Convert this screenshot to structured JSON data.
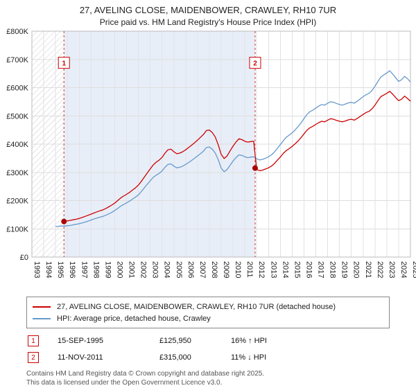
{
  "title": "27, AVELING CLOSE, MAIDENBOWER, CRAWLEY, RH10 7UR",
  "subtitle": "Price paid vs. HM Land Registry's House Price Index (HPI)",
  "chart_data": {
    "type": "line",
    "title": "27, AVELING CLOSE, MAIDENBOWER, CRAWLEY, RH10 7UR - Price paid vs HPI",
    "x_range": [
      1993,
      2025
    ],
    "y_range": [
      0,
      800000
    ],
    "grid": true,
    "legend_position": "bottom",
    "x_ticks": [
      1993,
      1994,
      1995,
      1996,
      1997,
      1998,
      1999,
      2000,
      2001,
      2002,
      2003,
      2004,
      2005,
      2006,
      2007,
      2008,
      2009,
      2010,
      2011,
      2012,
      2013,
      2014,
      2015,
      2016,
      2017,
      2018,
      2019,
      2020,
      2021,
      2022,
      2023,
      2024,
      2025
    ],
    "y_ticks": [
      {
        "v": 0,
        "label": "£0"
      },
      {
        "v": 100,
        "label": "£100K"
      },
      {
        "v": 200,
        "label": "£200K"
      },
      {
        "v": 300,
        "label": "£300K"
      },
      {
        "v": 400,
        "label": "£400K"
      },
      {
        "v": 500,
        "label": "£500K"
      },
      {
        "v": 600,
        "label": "£600K"
      },
      {
        "v": 700,
        "label": "£700K"
      },
      {
        "v": 800,
        "label": "£800K"
      }
    ],
    "hatch_end": 1995.71,
    "band": [
      1995.71,
      2011.87
    ],
    "band_color": "#e8eef8",
    "marker_label_y_k": 688,
    "markers": [
      {
        "num": "1",
        "x": 1995.71,
        "price_k": 125.95
      },
      {
        "num": "2",
        "x": 2011.87,
        "price_k": 315
      }
    ],
    "series": [
      {
        "name": "27, AVELING CLOSE, MAIDENBOWER, CRAWLEY, RH10 7UR (detached house)",
        "color": "#cc0000",
        "start": 1995.5,
        "step": 0.25,
        "values_k": [
          126,
          126,
          128,
          130,
          132,
          134,
          137,
          140,
          144,
          148,
          152,
          156,
          160,
          164,
          167,
          172,
          178,
          184,
          191,
          200,
          209,
          216,
          222,
          229,
          237,
          245,
          255,
          268,
          283,
          298,
          312,
          326,
          336,
          343,
          353,
          368,
          380,
          382,
          373,
          366,
          368,
          373,
          380,
          388,
          396,
          405,
          414,
          424,
          434,
          448,
          450,
          441,
          425,
          398,
          364,
          349,
          358,
          376,
          393,
          407,
          419,
          416,
          410,
          407,
          409,
          410,
          310,
          306,
          308,
          312,
          316,
          322,
          331,
          343,
          354,
          367,
          377,
          384,
          392,
          401,
          411,
          423,
          436,
          449,
          458,
          463,
          470,
          476,
          481,
          479,
          485,
          490,
          488,
          484,
          481,
          479,
          482,
          486,
          488,
          485,
          491,
          498,
          505,
          512,
          516,
          525,
          538,
          554,
          568,
          574,
          580,
          587,
          577,
          565,
          554,
          559,
          570,
          562,
          552
        ]
      },
      {
        "name": "HPI: Average price, detached house, Crawley",
        "color": "#6699cc",
        "start": 1995.0,
        "step": 0.25,
        "values_k": [
          108,
          109,
          110,
          110,
          111,
          112,
          114,
          116,
          118,
          121,
          124,
          127,
          131,
          135,
          138,
          141,
          144,
          148,
          153,
          158,
          165,
          172,
          180,
          186,
          192,
          198,
          205,
          212,
          220,
          232,
          245,
          258,
          270,
          282,
          290,
          296,
          305,
          318,
          328,
          330,
          322,
          316,
          318,
          322,
          328,
          335,
          342,
          350,
          358,
          366,
          375,
          388,
          390,
          382,
          368,
          345,
          315,
          302,
          310,
          325,
          340,
          352,
          362,
          360,
          355,
          352,
          354,
          355,
          348,
          344,
          346,
          350,
          355,
          362,
          372,
          385,
          398,
          412,
          424,
          432,
          440,
          450,
          462,
          475,
          490,
          505,
          515,
          520,
          528,
          535,
          540,
          538,
          545,
          550,
          548,
          544,
          540,
          538,
          542,
          546,
          548,
          545,
          552,
          560,
          568,
          575,
          580,
          590,
          605,
          622,
          638,
          645,
          652,
          660,
          648,
          635,
          622,
          628,
          640,
          632,
          620
        ]
      }
    ]
  },
  "legend": [
    {
      "label": "27, AVELING CLOSE, MAIDENBOWER, CRAWLEY, RH10 7UR (detached house)"
    },
    {
      "label": "HPI: Average price, detached house, Crawley"
    }
  ],
  "annotations": [
    {
      "num": "1",
      "date": "15-SEP-1995",
      "price": "£125,950",
      "hpi": "16% ↑ HPI"
    },
    {
      "num": "2",
      "date": "11-NOV-2011",
      "price": "£315,000",
      "hpi": "11% ↓ HPI"
    }
  ],
  "footer": {
    "line1": "Contains HM Land Registry data © Crown copyright and database right 2025.",
    "line2": "This data is licensed under the Open Government Licence v3.0."
  }
}
